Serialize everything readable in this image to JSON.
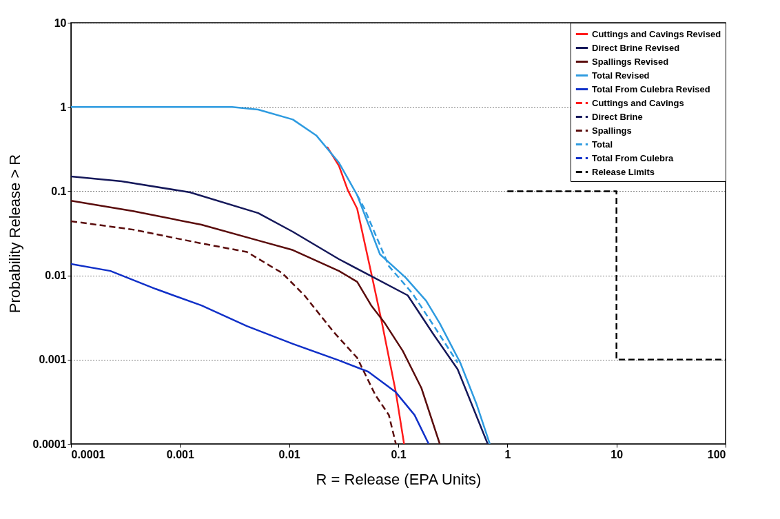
{
  "chart_data": {
    "type": "line",
    "xlabel": "R = Release (EPA Units)",
    "ylabel": "Probability Release > R",
    "log": "xy",
    "xlim": [
      0.0001,
      100
    ],
    "ylim": [
      0.0001,
      10
    ],
    "xticks": [
      0.0001,
      0.001,
      0.01,
      0.1,
      1,
      10,
      100
    ],
    "yticks": [
      0.0001,
      0.001,
      0.01,
      0.1,
      1,
      10
    ],
    "grid": "y",
    "legend": "top right",
    "marker": "none",
    "series": [
      {
        "name": "Cuttings and Cavings Revised",
        "color": "#ff1a1a",
        "line_style": "solid",
        "x": [
          0.0223,
          0.0286,
          0.0345,
          0.042,
          0.0565,
          0.071,
          0.095,
          0.113
        ],
        "values": [
          0.336,
          0.2,
          0.1025,
          0.062,
          0.0107,
          0.0027,
          0.00041,
          0.0001
        ]
      },
      {
        "name": "Direct Brine Revised",
        "color": "#15185a",
        "line_style": "solid",
        "x": [
          0.0001,
          0.00029,
          0.00123,
          0.0052,
          0.0108,
          0.0286,
          0.0565,
          0.122,
          0.21,
          0.35,
          0.66
        ],
        "values": [
          0.15,
          0.131,
          0.097,
          0.055,
          0.033,
          0.0156,
          0.0098,
          0.0058,
          0.002,
          0.00077,
          0.0001
        ]
      },
      {
        "name": "Spallings Revised",
        "color": "#5a0c0c",
        "line_style": "solid",
        "x": [
          0.0001,
          0.00037,
          0.00157,
          0.0052,
          0.0108,
          0.0286,
          0.042,
          0.0565,
          0.0755,
          0.11,
          0.163,
          0.24
        ],
        "values": [
          0.077,
          0.058,
          0.04,
          0.026,
          0.02,
          0.0113,
          0.0084,
          0.0044,
          0.0027,
          0.00127,
          0.00046,
          0.0001
        ]
      },
      {
        "name": "Total Revised",
        "color": "#2e9be0",
        "line_style": "solid",
        "x": [
          0.0001,
          0.003,
          0.0052,
          0.0108,
          0.0177,
          0.0286,
          0.042,
          0.068,
          0.117,
          0.18,
          0.24,
          0.37,
          0.52,
          0.69
        ],
        "values": [
          1,
          1,
          0.93,
          0.71,
          0.46,
          0.218,
          0.09,
          0.0178,
          0.0094,
          0.005,
          0.0027,
          0.00092,
          0.0003,
          0.0001
        ]
      },
      {
        "name": "Total From Culebra Revised",
        "color": "#1030c8",
        "line_style": "solid",
        "x": [
          0.0001,
          0.00023,
          0.0006,
          0.00157,
          0.0041,
          0.0108,
          0.0286,
          0.053,
          0.095,
          0.141,
          0.19
        ],
        "values": [
          0.0137,
          0.0113,
          0.0069,
          0.0044,
          0.0025,
          0.00154,
          0.00098,
          0.00072,
          0.00041,
          0.00022,
          0.0001
        ]
      },
      {
        "name": "Cuttings and Cavings",
        "color": "#ff1a1a",
        "line_style": "dashed"
      },
      {
        "name": "Direct Brine",
        "color": "#15185a",
        "line_style": "dashed"
      },
      {
        "name": "Spallings",
        "color": "#5a0c0c",
        "line_style": "dashed",
        "x": [
          0.0001,
          0.00037,
          0.00157,
          0.0041,
          0.0086,
          0.0138,
          0.0258,
          0.042,
          0.0617,
          0.082,
          0.095
        ],
        "values": [
          0.044,
          0.035,
          0.024,
          0.019,
          0.0107,
          0.0058,
          0.0021,
          0.00105,
          0.00038,
          0.00022,
          0.0001
        ]
      },
      {
        "name": "Total",
        "color": "#2e9be0",
        "line_style": "dashed",
        "x": [
          0.042,
          0.049,
          0.082,
          0.135,
          0.217,
          0.35
        ],
        "values": [
          0.09,
          0.062,
          0.0129,
          0.0061,
          0.0024,
          0.00092
        ]
      },
      {
        "name": "Total From Culebra",
        "color": "#1030c8",
        "line_style": "dashed"
      },
      {
        "name": "Release Limits",
        "color": "#000000",
        "line_style": "dashed",
        "x": [
          1,
          10,
          10,
          100
        ],
        "values": [
          0.1,
          0.1,
          0.001,
          0.001
        ]
      }
    ]
  }
}
